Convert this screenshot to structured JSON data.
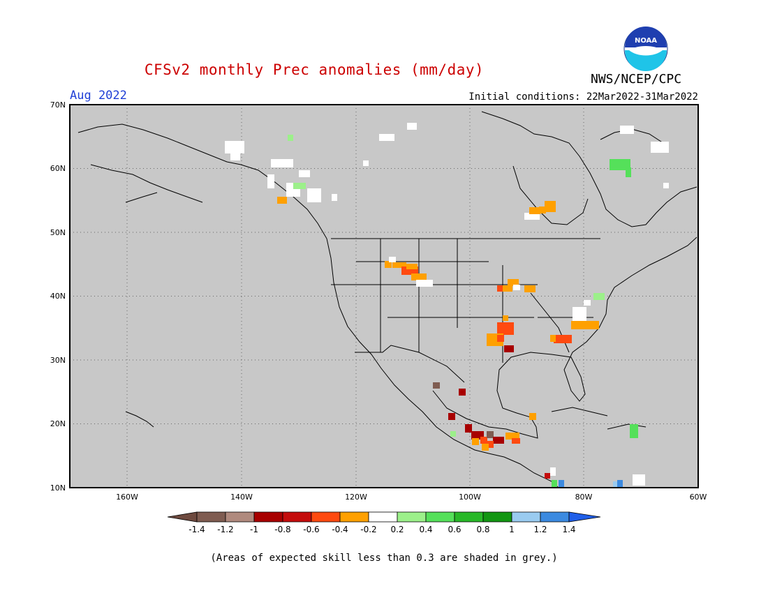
{
  "header": {
    "title": "CFSv2 monthly Prec anomalies (mm/day)",
    "month": "Aug 2022",
    "agency": "NWS/NCEP/CPC",
    "logo_text": "NOAA",
    "initial_conditions": "Initial conditions: 22Mar2022-31Mar2022"
  },
  "footnote": "(Areas of expected skill less than 0.3 are shaded in grey.)",
  "colors": {
    "title": "#cc0000",
    "month": "#1f3fd6",
    "low_skill_grey": "#c8c8c8"
  },
  "map": {
    "lon_labels": [
      "160W",
      "140W",
      "120W",
      "100W",
      "80W",
      "60W"
    ],
    "lat_labels": [
      "70N",
      "60N",
      "50N",
      "40N",
      "30N",
      "20N",
      "10N"
    ]
  },
  "colorbar": {
    "labels": [
      "-1.4",
      "-1.2",
      "-1",
      "-0.8",
      "-0.6",
      "-0.4",
      "-0.2",
      "0.2",
      "0.4",
      "0.6",
      "0.8",
      "1",
      "1.2",
      "1.4"
    ],
    "colors": [
      "#6e4a3f",
      "#7f5c51",
      "#b08a7e",
      "#a80000",
      "#c40c0c",
      "#ff4a10",
      "#ffa000",
      "#ffffff",
      "#9cf08a",
      "#55e05a",
      "#28b828",
      "#129612",
      "#9acbf0",
      "#3c8ae0",
      "#1f5ee8"
    ]
  }
}
